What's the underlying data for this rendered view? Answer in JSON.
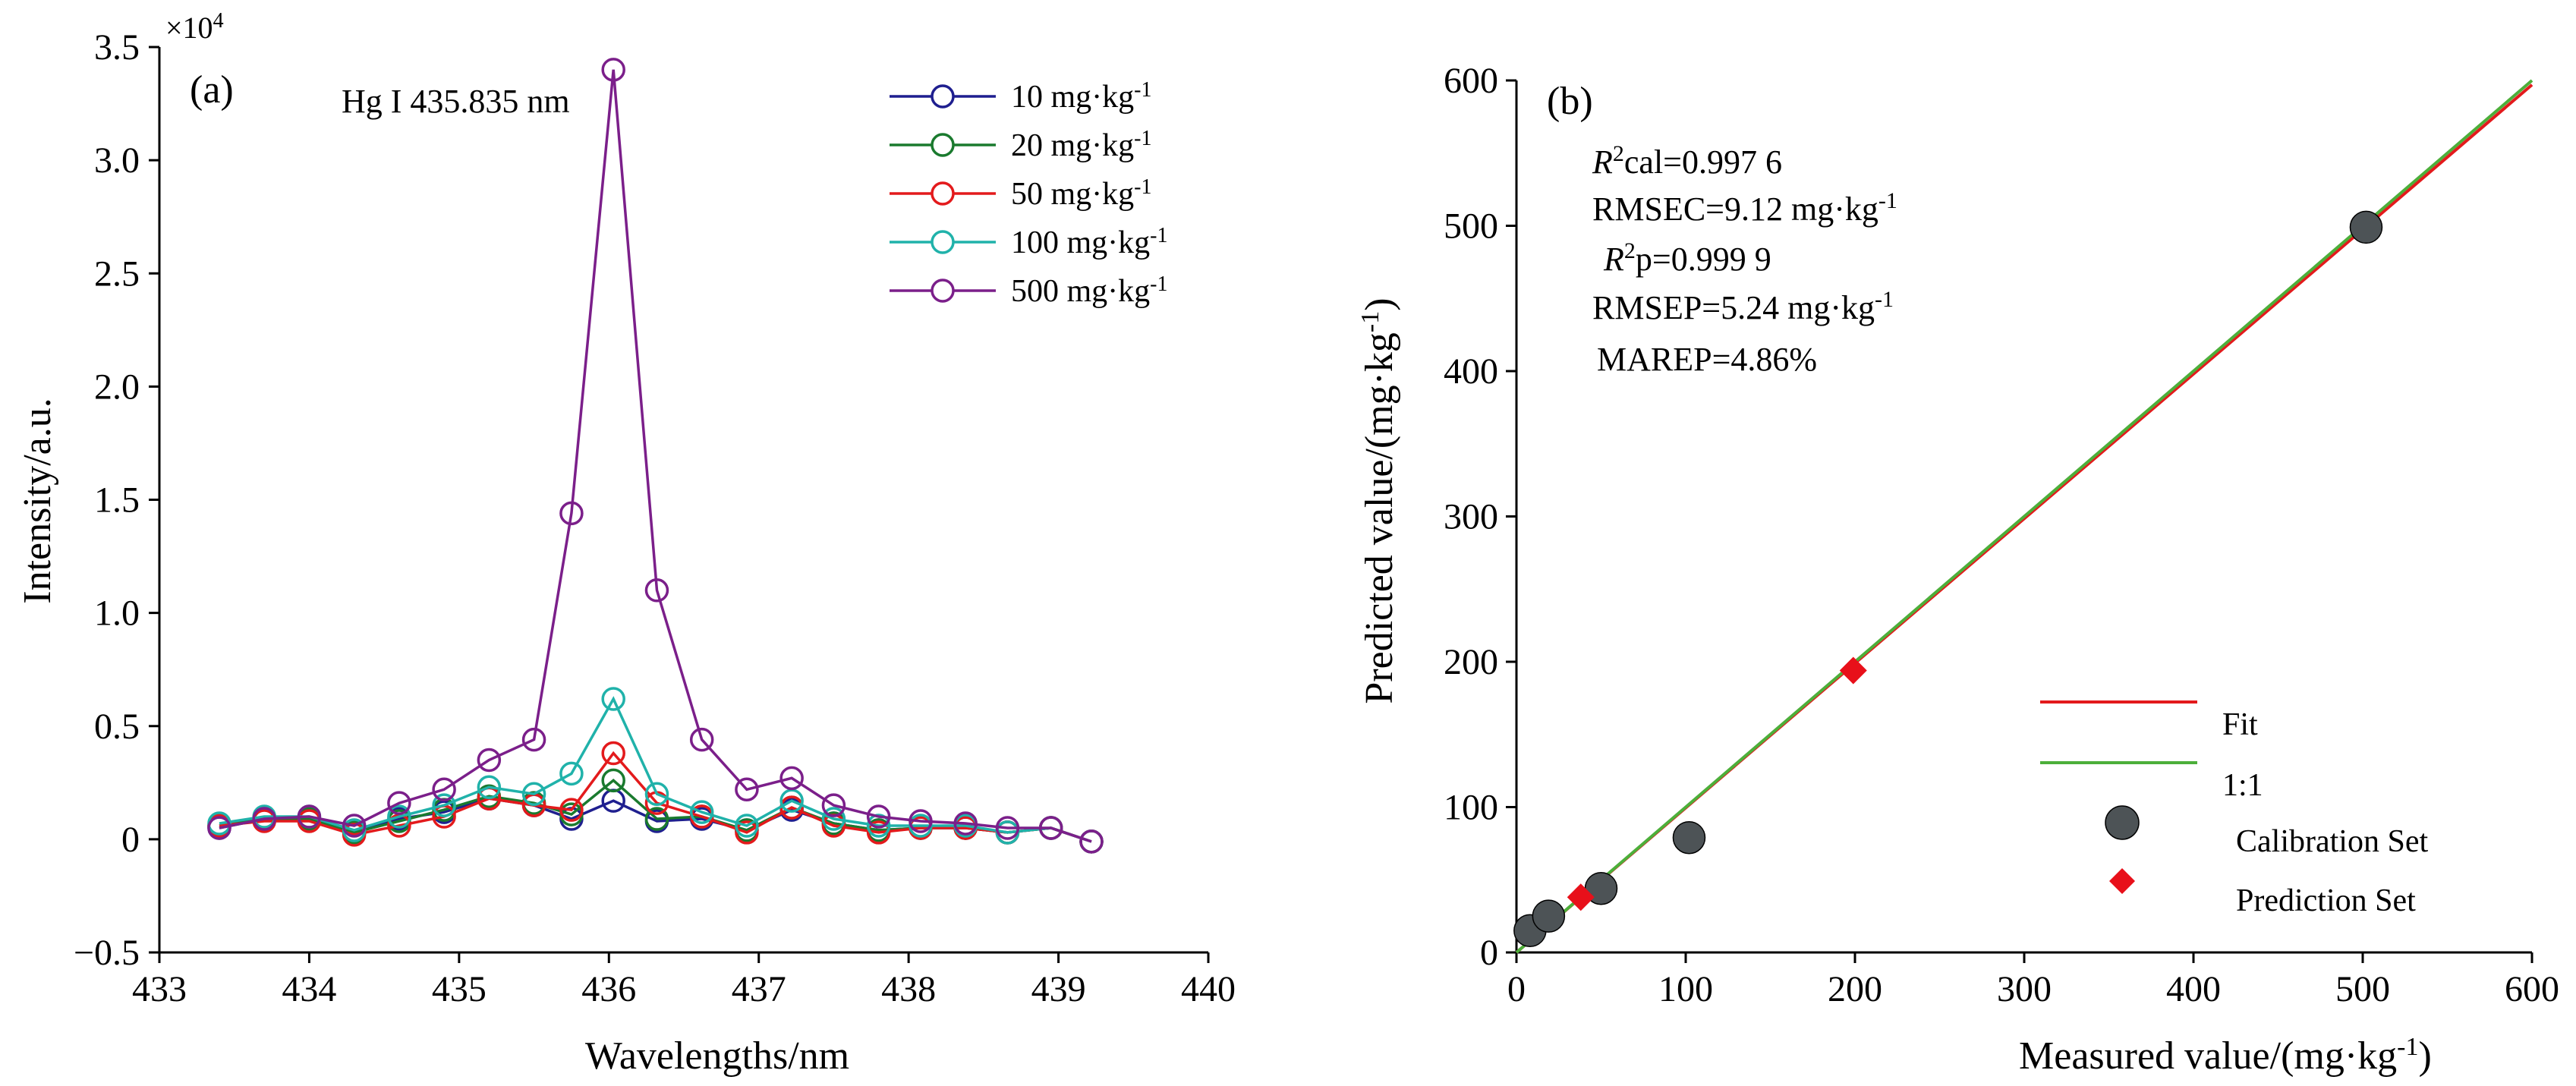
{
  "chart_data": [
    {
      "panel": "(a)",
      "type": "line",
      "annotation": "Hg I 435.835 nm",
      "xlabel": "Wavelengths/nm",
      "ylabel": "Intensity/a.u.",
      "y_multiplier": "×10",
      "y_multiplier_exp": "4",
      "xlim": [
        433,
        440
      ],
      "ylim": [
        -0.5,
        3.5
      ],
      "xticks": [
        "433",
        "434",
        "435",
        "436",
        "437",
        "438",
        "439",
        "440"
      ],
      "yticks": [
        "−0.5",
        "0",
        "0.5",
        "1.0",
        "1.5",
        "2.0",
        "2.5",
        "3.0",
        "3.5"
      ],
      "legend_position": "top-right",
      "x": [
        433.4,
        433.7,
        434.0,
        434.3,
        434.6,
        434.9,
        435.2,
        435.5,
        435.75,
        436.03,
        436.32,
        436.62,
        436.92,
        437.22,
        437.5,
        437.8,
        438.08,
        438.38,
        438.66,
        438.95,
        439.22
      ],
      "series": [
        {
          "name": "10 mg·kg",
          "unit_exp": "-1",
          "color": "#1f1f8f",
          "values": [
            0.05,
            0.09,
            0.09,
            0.03,
            0.09,
            0.12,
            0.18,
            0.15,
            0.09,
            0.17,
            0.08,
            0.09,
            0.04,
            0.13,
            0.07,
            0.04,
            0.05,
            0.05,
            0.03,
            0.05,
            -0.01
          ]
        },
        {
          "name": "20 mg·kg",
          "unit_exp": "-1",
          "color": "#1a7a2e",
          "values": [
            0.06,
            0.09,
            0.09,
            0.03,
            0.08,
            0.13,
            0.19,
            0.16,
            0.11,
            0.26,
            0.09,
            0.1,
            0.04,
            0.14,
            0.07,
            0.04,
            0.05,
            0.05,
            0.03,
            0.05,
            -0.01
          ]
        },
        {
          "name": "50 mg·kg",
          "unit_exp": "-1",
          "color": "#e31a1c",
          "values": [
            0.06,
            0.08,
            0.08,
            0.02,
            0.06,
            0.1,
            0.18,
            0.15,
            0.13,
            0.38,
            0.16,
            0.1,
            0.03,
            0.14,
            0.06,
            0.03,
            0.05,
            0.05,
            0.03,
            0.05,
            -0.01
          ]
        },
        {
          "name": "100 mg·kg",
          "unit_exp": "-1",
          "color": "#20b2aa",
          "values": [
            0.07,
            0.1,
            0.1,
            0.04,
            0.1,
            0.15,
            0.23,
            0.2,
            0.29,
            0.62,
            0.2,
            0.12,
            0.06,
            0.17,
            0.09,
            0.06,
            0.06,
            0.06,
            0.03,
            0.05,
            -0.01
          ]
        },
        {
          "name": "500 mg·kg",
          "unit_exp": "-1",
          "color": "#7b1f8a",
          "values": [
            0.05,
            0.09,
            0.1,
            0.06,
            0.16,
            0.22,
            0.35,
            0.44,
            1.44,
            3.4,
            1.1,
            0.44,
            0.22,
            0.27,
            0.15,
            0.1,
            0.08,
            0.07,
            0.05,
            0.05,
            -0.01
          ]
        }
      ]
    },
    {
      "panel": "(b)",
      "type": "scatter",
      "xlabel": "Measured value/(mg·kg",
      "ylabel": "Predicted value/(mg·kg",
      "label_exp": "-1",
      "xlim": [
        0,
        600
      ],
      "ylim": [
        0,
        600
      ],
      "xticks": [
        "0",
        "100",
        "200",
        "300",
        "400",
        "500",
        "600"
      ],
      "yticks": [
        "0",
        "100",
        "200",
        "300",
        "400",
        "500",
        "600"
      ],
      "legend_position": "bottom-right",
      "stats": {
        "r2cal": "cal=0.997 6",
        "rmsec": "RMSEC=9.12 mg·kg",
        "r2p": "p=0.999 9",
        "rmsep": "RMSEP=5.24 mg·kg",
        "marep": "MAREP=4.86%"
      },
      "lines": [
        {
          "name": "Fit",
          "color": "#e31a1c",
          "x": [
            0,
            600
          ],
          "y": [
            0,
            597
          ]
        },
        {
          "name": "1:1",
          "color": "#4caf3a",
          "x": [
            0,
            600
          ],
          "y": [
            0,
            600
          ]
        }
      ],
      "calibration_set": {
        "name": "Calibration Set",
        "color": "#4d5356",
        "points": [
          [
            8,
            15
          ],
          [
            19,
            25
          ],
          [
            50,
            44
          ],
          [
            102,
            79
          ],
          [
            502,
            499
          ]
        ]
      },
      "prediction_set": {
        "name": "Prediction Set",
        "color": "#e8101a",
        "points": [
          [
            38,
            38
          ],
          [
            199,
            194
          ]
        ]
      }
    }
  ]
}
